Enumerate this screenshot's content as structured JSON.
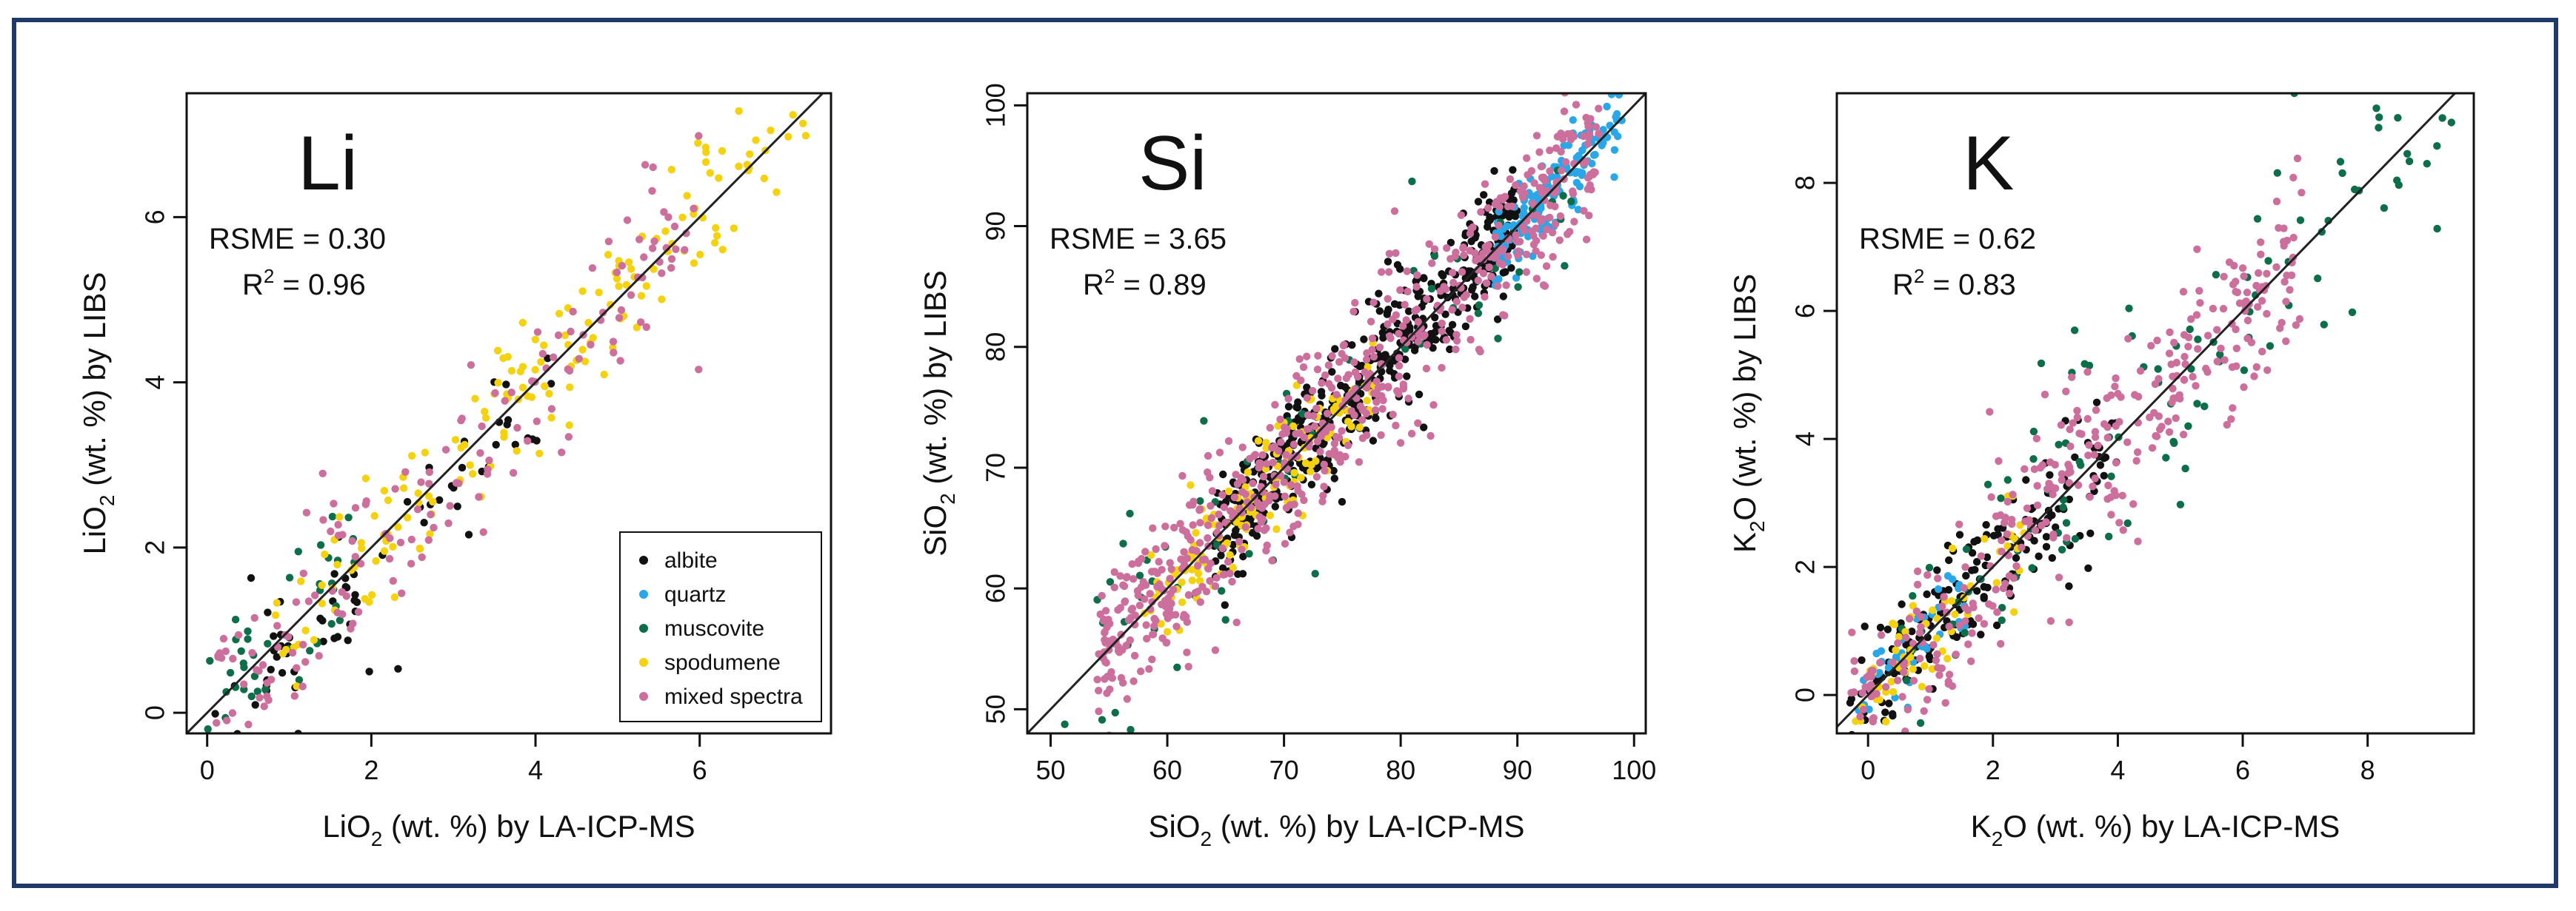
{
  "colors": {
    "albite": "#111111",
    "quartz": "#2aa7e8",
    "muscovite": "#0d6e4a",
    "spodumene": "#f5d20f",
    "mixed spectra": "#cc6f9c",
    "frame": "#1f3a68"
  },
  "legend": [
    "albite",
    "quartz",
    "muscovite",
    "spodumene",
    "mixed spectra"
  ],
  "chart_data": [
    {
      "type": "scatter",
      "element": "Li",
      "title": "Li",
      "rmse_text": "RSME = 0.30",
      "r2_label": "R",
      "r2_sup": "2",
      "r2_value": " = 0.96",
      "xlabel_pre": "LiO",
      "xlabel_sub": "2",
      "xlabel_post": " (wt. %) by LA-ICP-MS",
      "ylabel_pre": "LiO",
      "ylabel_sub": "2",
      "ylabel_post": " (wt. %) by LIBS",
      "xlim": [
        -0.25,
        7.6
      ],
      "ylim": [
        -0.25,
        7.5
      ],
      "xticks": [
        0,
        2,
        4,
        6
      ],
      "yticks": [
        0,
        2,
        4,
        6
      ],
      "xtick_labels": [
        "0",
        "2",
        "4",
        "6"
      ],
      "ytick_labels": [
        "0",
        "2",
        "4",
        "6"
      ],
      "legend_position": "bottom-right",
      "series": [
        {
          "name": "albite",
          "n": 75,
          "x": [
            0.0,
            4.2
          ],
          "y_center": "1:1",
          "y_below": 0.9,
          "spread": 0.35
        },
        {
          "name": "muscovite",
          "n": 45,
          "x": [
            0.0,
            1.8
          ],
          "y_center": "1:1",
          "spread": 0.35
        },
        {
          "name": "spodumene",
          "n": 170,
          "x": [
            0.8,
            7.3
          ],
          "y_center": "1:1",
          "spread": 0.45
        },
        {
          "name": "mixed spectra",
          "n": 160,
          "x": [
            0.0,
            6.0
          ],
          "y_center": "1:1",
          "spread": 0.5
        }
      ]
    },
    {
      "type": "scatter",
      "element": "Si",
      "title": "Si",
      "rmse_text": "RSME = 3.65",
      "r2_label": "R",
      "r2_sup": "2",
      "r2_value": " = 0.89",
      "xlabel_pre": "SiO",
      "xlabel_sub": "2",
      "xlabel_post": " (wt. %) by LA-ICP-MS",
      "ylabel_pre": "SiO",
      "ylabel_sub": "2",
      "ylabel_post": " (wt. %) by LIBS",
      "xlim": [
        48,
        101
      ],
      "ylim": [
        48,
        101
      ],
      "xticks": [
        50,
        60,
        70,
        80,
        90,
        100
      ],
      "yticks": [
        50,
        60,
        70,
        80,
        90,
        100
      ],
      "xtick_labels": [
        "50",
        "60",
        "70",
        "80",
        "90",
        "100"
      ],
      "ytick_labels": [
        "50",
        "60",
        "70",
        "80",
        "90",
        "100"
      ],
      "series": [
        {
          "name": "albite",
          "n": 520,
          "x": [
            64,
            90
          ],
          "y_center": "1:1",
          "spread": 2.6
        },
        {
          "name": "quartz",
          "n": 150,
          "x": [
            88,
            99
          ],
          "y_center": "1:1",
          "spread": 1.6
        },
        {
          "name": "muscovite",
          "n": 70,
          "x": [
            51,
            95
          ],
          "y_center": "1:1",
          "spread": 4.5
        },
        {
          "name": "spodumene",
          "n": 150,
          "x": [
            58,
            78
          ],
          "y_center": "1:1",
          "spread": 2.4
        },
        {
          "name": "mixed spectra",
          "n": 650,
          "x": [
            54,
            97
          ],
          "y_center": "1:1",
          "spread": 3.3
        }
      ]
    },
    {
      "type": "scatter",
      "element": "K",
      "title": "K",
      "rmse_text": "RSME = 0.62",
      "r2_label": "R",
      "r2_sup": "2",
      "r2_value": " = 0.83",
      "xlabel_pre": "K",
      "xlabel_sub": "2",
      "xlabel_post": "O (wt. %) by LA-ICP-MS",
      "ylabel_pre": "K",
      "ylabel_sub": "2",
      "ylabel_post": "O (wt. %) by LIBS",
      "xlim": [
        -0.5,
        9.7
      ],
      "ylim": [
        -0.6,
        9.4
      ],
      "xticks": [
        0,
        2,
        4,
        6,
        8
      ],
      "yticks": [
        0,
        2,
        4,
        6,
        8
      ],
      "xtick_labels": [
        "0",
        "2",
        "4",
        "6",
        "8"
      ],
      "ytick_labels": [
        "0",
        "2",
        "4",
        "6",
        "8"
      ],
      "series": [
        {
          "name": "albite",
          "n": 190,
          "x": [
            -0.3,
            4.0
          ],
          "y_center": "1:1",
          "spread": 0.5
        },
        {
          "name": "quartz",
          "n": 40,
          "x": [
            -0.2,
            1.6
          ],
          "y_center": "1:1",
          "spread": 0.35
        },
        {
          "name": "muscovite",
          "n": 110,
          "x": [
            0.5,
            9.4
          ],
          "y_center": "1:1",
          "spread": 1.0
        },
        {
          "name": "spodumene",
          "n": 60,
          "x": [
            -0.2,
            2.5
          ],
          "y_center": "1:1",
          "spread": 0.45
        },
        {
          "name": "mixed spectra",
          "n": 330,
          "x": [
            -0.3,
            7.0
          ],
          "y_center": "1:1",
          "spread": 0.75
        }
      ]
    }
  ]
}
